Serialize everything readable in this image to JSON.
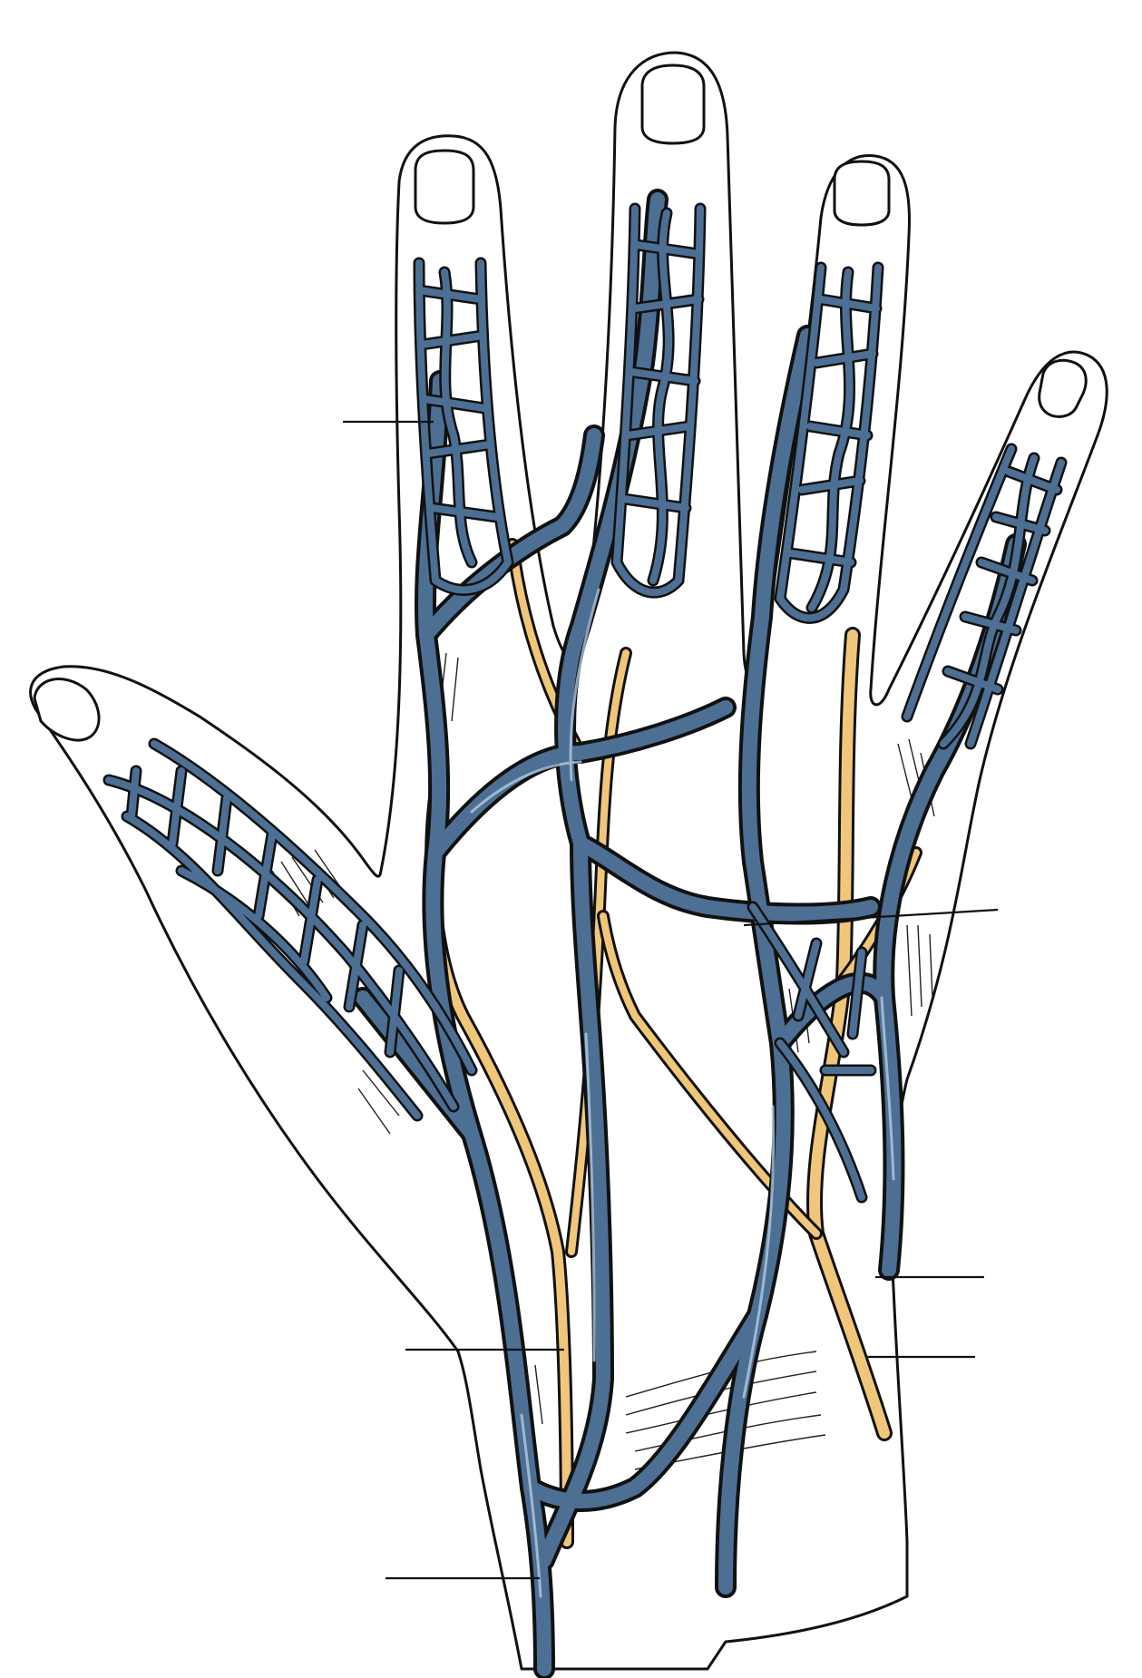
{
  "figure": {
    "subject": "dorsal-hand-venous-network-illustration",
    "colors": {
      "vein": "#4d6f93",
      "vein_dark": "#34506f",
      "nerve": "#f0c77a",
      "outline": "#111111",
      "skin": "#ffffff"
    },
    "label_leaders": [
      {
        "id": "leader-index-finger-left"
      },
      {
        "id": "leader-metacarpal-right"
      },
      {
        "id": "leader-wrist-right-upper"
      },
      {
        "id": "leader-wrist-right-lower"
      },
      {
        "id": "leader-wrist-left"
      },
      {
        "id": "leader-forearm-left"
      }
    ]
  }
}
